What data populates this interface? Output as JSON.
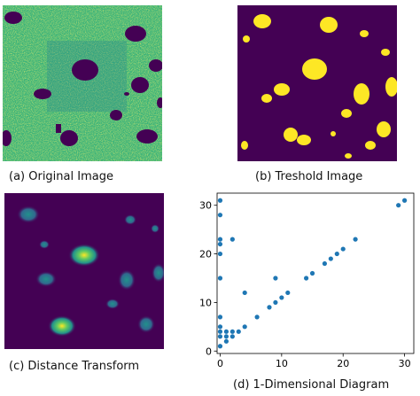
{
  "panels": {
    "a": {
      "caption": "(a) Original Image"
    },
    "b": {
      "caption": "(b) Treshold Image"
    },
    "c": {
      "caption": "(c) Distance Transform"
    },
    "d": {
      "caption": "(d) 1-Dimensional Diagram"
    }
  },
  "colors": {
    "viridis_dark": "#440154",
    "viridis_green": "#3bb37a",
    "viridis_teal": "#2a8a8c",
    "viridis_yellow": "#fde725",
    "point": "#1f77b4"
  },
  "chart_data": {
    "type": "scatter",
    "xlim": [
      -0.5,
      31.5
    ],
    "ylim": [
      -0.5,
      32.5
    ],
    "xticks": [
      0,
      10,
      20,
      30
    ],
    "yticks": [
      0,
      10,
      20,
      30
    ],
    "grid": false,
    "points": [
      [
        0,
        31
      ],
      [
        0,
        28
      ],
      [
        0,
        23
      ],
      [
        0,
        22
      ],
      [
        0,
        20
      ],
      [
        0,
        15
      ],
      [
        0,
        7
      ],
      [
        0,
        5
      ],
      [
        0,
        4
      ],
      [
        0,
        3
      ],
      [
        0,
        1
      ],
      [
        1,
        4
      ],
      [
        1,
        3
      ],
      [
        1,
        2
      ],
      [
        2,
        23
      ],
      [
        2,
        4
      ],
      [
        2,
        3
      ],
      [
        3,
        4
      ],
      [
        4,
        12
      ],
      [
        4,
        5
      ],
      [
        6,
        7
      ],
      [
        8,
        9
      ],
      [
        9,
        15
      ],
      [
        9,
        10
      ],
      [
        10,
        11
      ],
      [
        11,
        12
      ],
      [
        14,
        15
      ],
      [
        15,
        16
      ],
      [
        17,
        18
      ],
      [
        18,
        19
      ],
      [
        19,
        20
      ],
      [
        20,
        21
      ],
      [
        22,
        23
      ],
      [
        29,
        30
      ],
      [
        30,
        31
      ]
    ]
  }
}
